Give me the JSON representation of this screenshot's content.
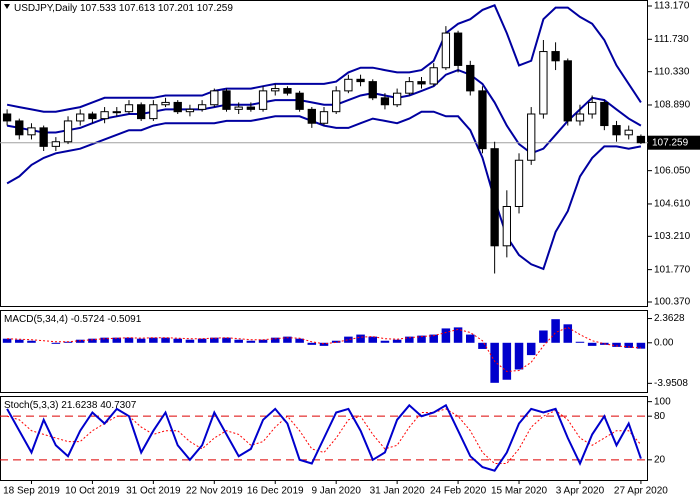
{
  "chart_data": [
    {
      "type": "candlestick",
      "title": "USDJPY,Daily",
      "candle_color": "#000000",
      "price_line_color": "#a0a0a0",
      "categories": [
        null,
        null,
        "18 Sep 2019",
        null,
        null,
        null,
        null,
        "10 Oct 2019",
        null,
        null,
        null,
        null,
        "31 Oct 2019",
        null,
        null,
        null,
        null,
        "22 Nov 2019",
        null,
        null,
        null,
        null,
        "16 Dec 2019",
        null,
        null,
        null,
        null,
        "9 Jan 2020",
        null,
        null,
        null,
        null,
        "31 Jan 2020",
        null,
        null,
        null,
        null,
        "24 Feb 2020",
        null,
        null,
        null,
        null,
        "15 Mar 2020",
        null,
        null,
        null,
        null,
        "3 Apr 2020",
        null,
        null,
        null,
        null,
        "27 Apr 2020"
      ],
      "open": [
        108.5,
        108.2,
        107.6,
        107.9,
        107.1,
        107.3,
        108.2,
        108.5,
        108.3,
        108.6,
        108.6,
        108.9,
        108.3,
        108.9,
        109.0,
        108.6,
        108.7,
        108.9,
        109.5,
        108.7,
        108.8,
        108.7,
        109.5,
        109.6,
        109.4,
        108.7,
        108.1,
        108.6,
        109.5,
        110.0,
        109.9,
        109.2,
        108.9,
        109.4,
        109.9,
        109.8,
        110.5,
        112.0,
        110.6,
        109.5,
        107.0,
        102.8,
        104.5,
        106.5,
        108.5,
        111.2,
        110.8,
        108.2,
        108.5,
        109.0,
        108.0,
        107.6,
        107.533
      ],
      "high": [
        108.7,
        108.3,
        108.1,
        108.0,
        107.5,
        108.4,
        108.7,
        108.6,
        108.8,
        108.8,
        109.1,
        109.0,
        109.1,
        109.2,
        109.1,
        108.9,
        109.1,
        109.6,
        109.6,
        109.0,
        109.0,
        109.7,
        109.8,
        109.7,
        109.5,
        108.8,
        108.8,
        109.7,
        110.2,
        110.2,
        110.0,
        109.4,
        109.6,
        110.1,
        110.1,
        110.7,
        112.3,
        112.1,
        110.8,
        109.7,
        107.3,
        105.2,
        106.8,
        108.8,
        111.7,
        111.6,
        110.9,
        108.9,
        109.3,
        109.1,
        108.2,
        108.0,
        107.613
      ],
      "low": [
        108.0,
        107.4,
        107.4,
        106.9,
        106.9,
        107.2,
        108.0,
        108.1,
        108.1,
        108.4,
        108.5,
        108.2,
        108.2,
        108.8,
        108.5,
        108.4,
        108.6,
        108.8,
        108.6,
        108.5,
        108.6,
        108.6,
        109.3,
        109.3,
        108.6,
        107.9,
        108.0,
        108.5,
        109.4,
        109.7,
        109.1,
        108.7,
        108.8,
        109.3,
        109.6,
        109.7,
        110.4,
        110.3,
        109.3,
        106.8,
        101.6,
        102.3,
        104.2,
        106.3,
        108.3,
        110.4,
        108.0,
        108.0,
        108.3,
        107.8,
        107.3,
        107.4,
        107.201
      ],
      "close": [
        108.2,
        107.6,
        107.9,
        107.1,
        107.3,
        108.2,
        108.5,
        108.3,
        108.6,
        108.6,
        108.9,
        108.3,
        108.9,
        109.0,
        108.6,
        108.7,
        108.9,
        109.5,
        108.7,
        108.8,
        108.7,
        109.5,
        109.6,
        109.4,
        108.7,
        108.1,
        108.6,
        109.5,
        110.0,
        109.9,
        109.2,
        108.9,
        109.4,
        109.9,
        109.8,
        110.5,
        112.0,
        110.6,
        109.5,
        107.0,
        102.8,
        104.5,
        106.5,
        108.5,
        111.2,
        110.8,
        108.2,
        108.5,
        109.0,
        108.0,
        107.6,
        107.8,
        107.259
      ],
      "bands": {
        "color": "#0000a0",
        "upper": [
          108.9,
          108.8,
          108.7,
          108.6,
          108.6,
          108.7,
          108.8,
          109.0,
          109.2,
          109.2,
          109.2,
          109.2,
          109.2,
          109.3,
          109.3,
          109.3,
          109.3,
          109.5,
          109.6,
          109.6,
          109.6,
          109.7,
          109.8,
          109.8,
          109.8,
          109.8,
          109.8,
          109.9,
          110.3,
          110.5,
          110.5,
          110.4,
          110.3,
          110.3,
          110.4,
          110.8,
          112.0,
          112.4,
          112.6,
          113.0,
          113.2,
          112.0,
          110.6,
          110.8,
          112.6,
          113.1,
          113.1,
          112.7,
          112.4,
          111.7,
          110.6,
          109.8,
          109.0
        ],
        "middle": [
          108.0,
          107.9,
          107.8,
          107.7,
          107.7,
          107.8,
          107.9,
          108.1,
          108.3,
          108.4,
          108.5,
          108.5,
          108.6,
          108.7,
          108.7,
          108.7,
          108.7,
          108.8,
          108.9,
          108.9,
          108.9,
          109.0,
          109.1,
          109.1,
          109.1,
          109.0,
          108.9,
          108.9,
          109.1,
          109.3,
          109.4,
          109.3,
          109.2,
          109.3,
          109.5,
          109.7,
          110.2,
          110.4,
          110.2,
          109.8,
          109.0,
          108.0,
          107.2,
          106.8,
          107.0,
          107.6,
          108.2,
          108.7,
          109.2,
          109.1,
          108.7,
          108.3,
          108.0
        ],
        "lower": [
          105.5,
          105.8,
          106.3,
          106.6,
          106.8,
          106.9,
          107.0,
          107.2,
          107.4,
          107.6,
          107.8,
          107.8,
          108.0,
          108.1,
          108.1,
          108.1,
          108.1,
          108.1,
          108.2,
          108.2,
          108.2,
          108.3,
          108.4,
          108.4,
          108.4,
          108.2,
          108.0,
          107.9,
          107.9,
          108.1,
          108.3,
          108.2,
          108.1,
          108.3,
          108.6,
          108.6,
          108.4,
          108.4,
          107.8,
          106.6,
          104.8,
          103.2,
          102.4,
          102.0,
          101.8,
          103.4,
          104.3,
          105.8,
          106.6,
          107.1,
          107.1,
          107.0,
          107.1
        ]
      },
      "ylim": [
        100.37,
        113.17
      ],
      "yticks": [
        {
          "value": 113.17,
          "label": "113.170"
        },
        {
          "value": 111.73,
          "label": "111.730"
        },
        {
          "value": 110.33,
          "label": "110.330"
        },
        {
          "value": 108.89,
          "label": "108.890"
        },
        {
          "value": 106.05,
          "label": "106.050"
        },
        {
          "value": 104.61,
          "label": "104.610"
        },
        {
          "value": 103.21,
          "label": "103.210"
        },
        {
          "value": 101.77,
          "label": "101.770"
        },
        {
          "value": 100.37,
          "label": "100.370"
        }
      ]
    },
    {
      "type": "macd",
      "title": "MACD(5,34,4)",
      "hist_color": "#0000cc",
      "signal_color": "#ff0000",
      "hist": [
        0.4,
        0.3,
        0.2,
        0.0,
        -0.1,
        0.1,
        0.3,
        0.4,
        0.5,
        0.5,
        0.5,
        0.4,
        0.5,
        0.5,
        0.4,
        0.3,
        0.4,
        0.5,
        0.5,
        0.3,
        0.2,
        0.3,
        0.5,
        0.6,
        0.4,
        -0.2,
        -0.3,
        0.2,
        0.6,
        0.8,
        0.6,
        0.2,
        0.3,
        0.6,
        0.7,
        0.8,
        1.4,
        1.5,
        0.8,
        -0.6,
        -3.9,
        -3.6,
        -2.6,
        -1.2,
        1.2,
        2.3,
        1.8,
        0.1,
        -0.3,
        -0.2,
        -0.4,
        -0.5,
        -0.5724
      ],
      "signal": [
        0.4,
        0.35,
        0.3,
        0.2,
        0.1,
        0.1,
        0.2,
        0.3,
        0.4,
        0.45,
        0.5,
        0.45,
        0.5,
        0.5,
        0.45,
        0.4,
        0.4,
        0.45,
        0.5,
        0.4,
        0.3,
        0.3,
        0.4,
        0.5,
        0.45,
        0.1,
        -0.1,
        0.05,
        0.3,
        0.55,
        0.6,
        0.4,
        0.35,
        0.5,
        0.6,
        0.7,
        1.0,
        1.3,
        1.0,
        0.2,
        -1.8,
        -2.8,
        -2.7,
        -1.9,
        -0.3,
        1.0,
        1.5,
        0.8,
        0.2,
        -0.1,
        -0.3,
        -0.4,
        -0.5091
      ],
      "ylim": [
        -4.6,
        3.0
      ],
      "yticks": [
        2.3628,
        {
          "value": 0,
          "label": "0.00"
        },
        -3.9508
      ]
    },
    {
      "type": "stochastic",
      "title": "Stoch(5,3,3)",
      "k_color": "#0000cc",
      "d_color": "#ff0000",
      "level_color": "#dd0000",
      "k": [
        90,
        60,
        30,
        75,
        40,
        25,
        60,
        85,
        70,
        90,
        80,
        30,
        60,
        85,
        40,
        20,
        40,
        85,
        55,
        25,
        35,
        75,
        90,
        70,
        20,
        15,
        50,
        85,
        90,
        60,
        20,
        30,
        75,
        95,
        80,
        85,
        95,
        60,
        25,
        10,
        5,
        30,
        70,
        90,
        85,
        90,
        50,
        15,
        55,
        80,
        40,
        70,
        21.6238
      ],
      "d": [
        80,
        75,
        60,
        55,
        50,
        45,
        45,
        60,
        70,
        80,
        80,
        65,
        55,
        60,
        60,
        45,
        35,
        50,
        60,
        55,
        40,
        45,
        65,
        80,
        60,
        35,
        30,
        50,
        75,
        80,
        55,
        35,
        40,
        65,
        85,
        85,
        90,
        80,
        60,
        30,
        15,
        15,
        35,
        65,
        80,
        88,
        75,
        50,
        40,
        50,
        60,
        60,
        40.7307
      ],
      "levels": [
        20,
        80
      ],
      "ylim": [
        -5,
        105
      ],
      "yticks": [
        20,
        80,
        100
      ]
    }
  ]
}
